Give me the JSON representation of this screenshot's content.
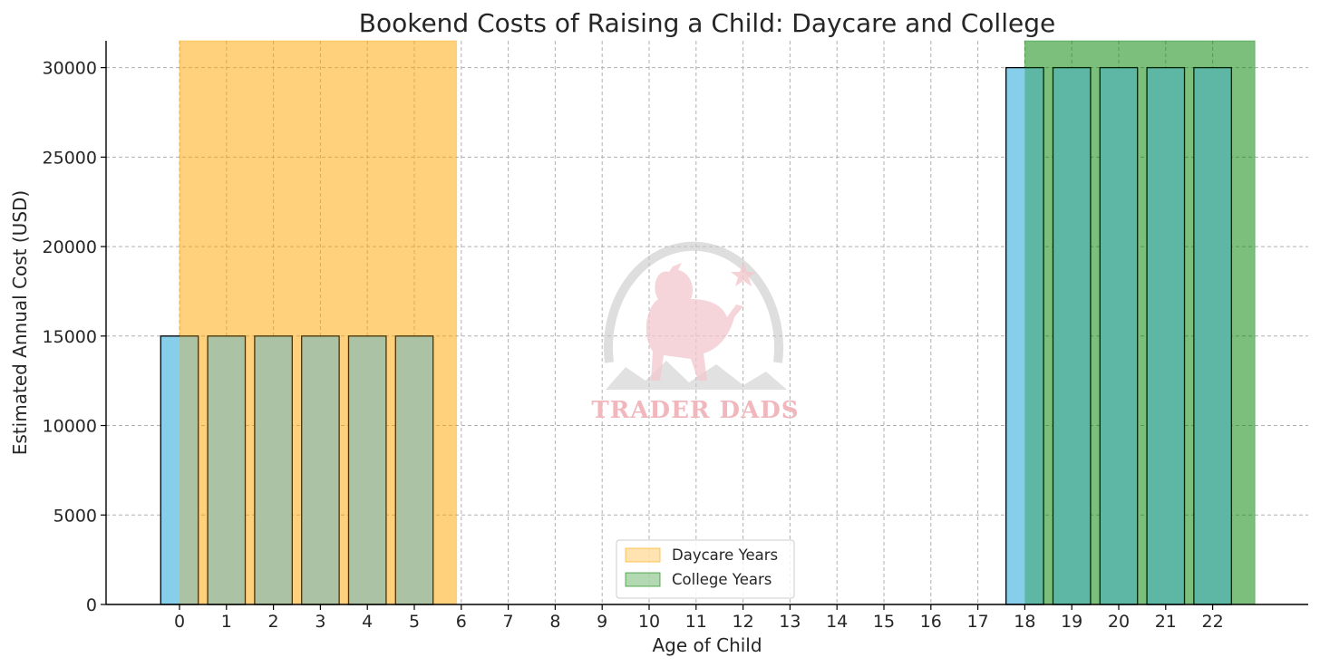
{
  "chart_data": {
    "type": "bar",
    "title": "Bookend Costs of Raising a Child: Daycare and College",
    "xlabel": "Age of Child",
    "ylabel": "Estimated Annual Cost (USD)",
    "x_ticks": [
      0,
      1,
      2,
      3,
      4,
      5,
      6,
      7,
      8,
      9,
      10,
      11,
      12,
      13,
      14,
      15,
      16,
      17,
      18,
      19,
      20,
      21,
      22
    ],
    "y_ticks": [
      0,
      5000,
      10000,
      15000,
      20000,
      25000,
      30000
    ],
    "ylim": [
      0,
      31500
    ],
    "grid": true,
    "bar_color": "#87ceeb",
    "series": [
      {
        "x": [
          0,
          1,
          2,
          3,
          4,
          5,
          6,
          7,
          8,
          9,
          10,
          11,
          12,
          13,
          14,
          15,
          16,
          17,
          18,
          19,
          20,
          21,
          22
        ],
        "values": [
          15000,
          15000,
          15000,
          15000,
          15000,
          15000,
          0,
          0,
          0,
          0,
          0,
          0,
          0,
          0,
          0,
          0,
          0,
          0,
          30000,
          30000,
          30000,
          30000,
          30000
        ]
      }
    ],
    "spans": [
      {
        "name": "Daycare Years",
        "from": 0,
        "to": 5.9,
        "color": "#ffa500",
        "alpha": 0.3
      },
      {
        "name": "College Years",
        "from": 18,
        "to": 22.9,
        "color": "#008000",
        "alpha": 0.3
      }
    ],
    "legend_position": "lower center"
  },
  "watermark": {
    "text": "TRADER DADS"
  }
}
